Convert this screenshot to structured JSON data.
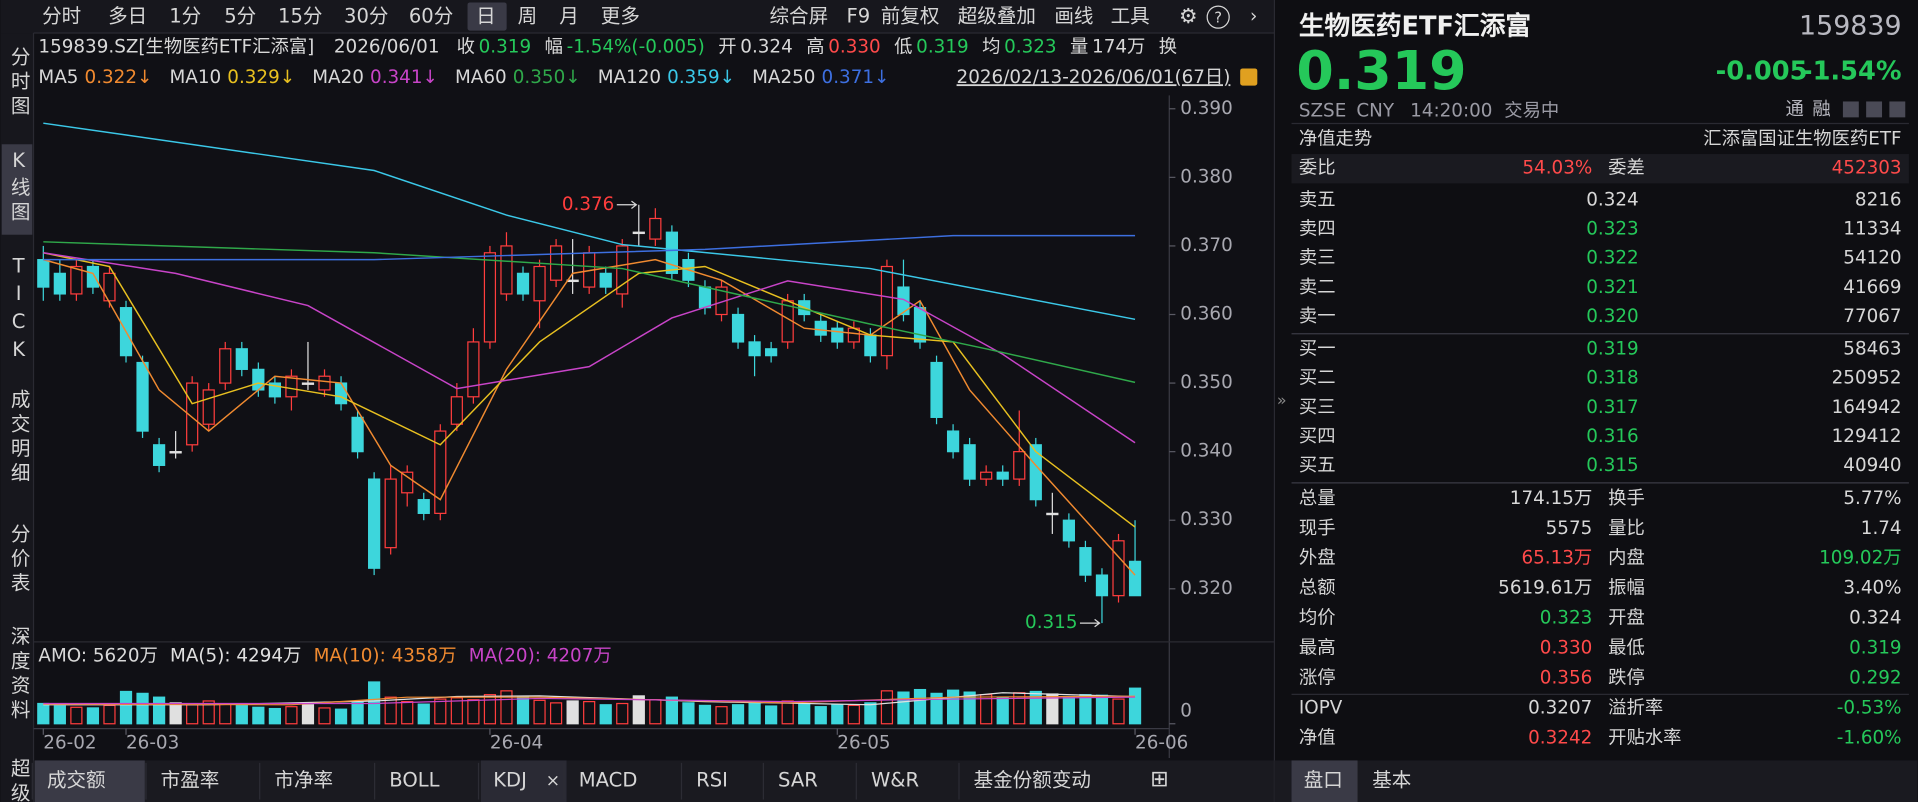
{
  "toolbar": {
    "periods": [
      "分时",
      "多日",
      "1分",
      "5分",
      "15分",
      "30分",
      "60分",
      "日",
      "周",
      "月",
      "更多"
    ],
    "active": 7,
    "tools": [
      "综合屏",
      "F9",
      "前复权",
      "超级叠加",
      "画线",
      "工具"
    ]
  },
  "sidebar": {
    "tabs": [
      "分时图",
      "K线图",
      "TICK",
      "成交明细",
      "分价表",
      "深度资料",
      "超级"
    ],
    "active": 1
  },
  "info": {
    "code": "159839.SZ[生物医药ETF汇添富]",
    "date": "2026/06/01",
    "fields": [
      {
        "label": "收",
        "value": "0.319",
        "tone": "down"
      },
      {
        "label": "幅",
        "value": "-1.54%(-0.005)",
        "tone": "down"
      },
      {
        "label": "开",
        "value": "0.324",
        "tone": "flat"
      },
      {
        "label": "高",
        "value": "0.330",
        "tone": "up"
      },
      {
        "label": "低",
        "value": "0.319",
        "tone": "down"
      },
      {
        "label": "均",
        "value": "0.323",
        "tone": "down"
      },
      {
        "label": "量",
        "value": "174万",
        "tone": "flat"
      }
    ],
    "trailing": "换"
  },
  "chart_data": {
    "type": "candlestick",
    "range_label": "2026/02/13-2026/06/01(67日)",
    "up_color": "#ff3d3d",
    "down_color": "#3dd6dc",
    "flat_color": "#e0e0e0",
    "grid": false,
    "xlim": [
      0,
      66
    ],
    "xticks": [
      {
        "value": 0,
        "label": "26-02"
      },
      {
        "value": 5,
        "label": "26-03"
      },
      {
        "value": 27,
        "label": "26-04"
      },
      {
        "value": 48,
        "label": "26-05"
      },
      {
        "value": 66,
        "label": "26-06"
      }
    ],
    "ylim": [
      0.3128,
      0.3916
    ],
    "yticks": [
      {
        "value": 0.32,
        "label": "0.320"
      },
      {
        "value": 0.33,
        "label": "0.330"
      },
      {
        "value": 0.34,
        "label": "0.340"
      },
      {
        "value": 0.35,
        "label": "0.350"
      },
      {
        "value": 0.36,
        "label": "0.360"
      },
      {
        "value": 0.37,
        "label": "0.370"
      },
      {
        "value": 0.38,
        "label": "0.380"
      },
      {
        "value": 0.39,
        "label": "0.390"
      }
    ],
    "candles": {
      "open": [
        0.368,
        0.366,
        0.363,
        0.367,
        0.362,
        0.361,
        0.353,
        0.341,
        0.34,
        0.341,
        0.344,
        0.35,
        0.355,
        0.352,
        0.35,
        0.348,
        0.35,
        0.349,
        0.35,
        0.345,
        0.336,
        0.326,
        0.334,
        0.333,
        0.331,
        0.344,
        0.348,
        0.356,
        0.363,
        0.366,
        0.362,
        0.365,
        0.365,
        0.364,
        0.366,
        0.363,
        0.372,
        0.371,
        0.372,
        0.368,
        0.364,
        0.36,
        0.36,
        0.356,
        0.355,
        0.356,
        0.362,
        0.359,
        0.358,
        0.356,
        0.357,
        0.354,
        0.364,
        0.361,
        0.353,
        0.343,
        0.341,
        0.336,
        0.337,
        0.336,
        0.341,
        0.331,
        0.33,
        0.326,
        0.322,
        0.319,
        0.324
      ],
      "close": [
        0.364,
        0.363,
        0.367,
        0.364,
        0.366,
        0.354,
        0.343,
        0.338,
        0.34,
        0.35,
        0.349,
        0.355,
        0.352,
        0.349,
        0.348,
        0.351,
        0.35,
        0.351,
        0.347,
        0.34,
        0.323,
        0.336,
        0.337,
        0.331,
        0.343,
        0.348,
        0.356,
        0.369,
        0.37,
        0.363,
        0.367,
        0.37,
        0.365,
        0.369,
        0.364,
        0.37,
        0.372,
        0.374,
        0.366,
        0.365,
        0.361,
        0.364,
        0.356,
        0.354,
        0.354,
        0.362,
        0.36,
        0.357,
        0.356,
        0.358,
        0.354,
        0.367,
        0.36,
        0.356,
        0.345,
        0.34,
        0.336,
        0.337,
        0.336,
        0.34,
        0.333,
        0.331,
        0.327,
        0.322,
        0.319,
        0.327,
        0.319
      ],
      "high": [
        0.37,
        0.368,
        0.368,
        0.368,
        0.367,
        0.362,
        0.354,
        0.342,
        0.343,
        0.351,
        0.35,
        0.356,
        0.356,
        0.353,
        0.351,
        0.352,
        0.356,
        0.352,
        0.351,
        0.346,
        0.337,
        0.338,
        0.338,
        0.334,
        0.344,
        0.35,
        0.358,
        0.37,
        0.372,
        0.367,
        0.368,
        0.371,
        0.371,
        0.37,
        0.367,
        0.371,
        0.376,
        0.3755,
        0.373,
        0.369,
        0.365,
        0.365,
        0.361,
        0.357,
        0.356,
        0.363,
        0.363,
        0.36,
        0.359,
        0.359,
        0.358,
        0.368,
        0.368,
        0.362,
        0.354,
        0.344,
        0.342,
        0.338,
        0.338,
        0.346,
        0.342,
        0.334,
        0.331,
        0.327,
        0.323,
        0.328,
        0.33
      ],
      "low": [
        0.362,
        0.362,
        0.362,
        0.363,
        0.361,
        0.353,
        0.342,
        0.337,
        0.339,
        0.34,
        0.343,
        0.349,
        0.351,
        0.348,
        0.347,
        0.346,
        0.349,
        0.348,
        0.346,
        0.339,
        0.322,
        0.325,
        0.332,
        0.33,
        0.33,
        0.343,
        0.347,
        0.355,
        0.362,
        0.362,
        0.358,
        0.364,
        0.363,
        0.363,
        0.363,
        0.361,
        0.37,
        0.37,
        0.365,
        0.364,
        0.36,
        0.359,
        0.355,
        0.351,
        0.353,
        0.355,
        0.359,
        0.356,
        0.355,
        0.355,
        0.353,
        0.352,
        0.359,
        0.355,
        0.344,
        0.339,
        0.335,
        0.335,
        0.335,
        0.335,
        0.332,
        0.328,
        0.326,
        0.321,
        0.315,
        0.318,
        0.319
      ]
    },
    "series": [
      {
        "name": "MA5",
        "legend_label": "0.322↓",
        "color": "#f08a30",
        "x": [
          0,
          3,
          7,
          10,
          14,
          18,
          21,
          24,
          28,
          32,
          37,
          41,
          46,
          50,
          53,
          56,
          60,
          63,
          66
        ],
        "values": [
          0.368,
          0.366,
          0.349,
          0.343,
          0.351,
          0.35,
          0.338,
          0.333,
          0.352,
          0.366,
          0.368,
          0.365,
          0.358,
          0.357,
          0.362,
          0.349,
          0.338,
          0.33,
          0.322
        ]
      },
      {
        "name": "MA10",
        "legend_label": "0.329↓",
        "color": "#e8c020",
        "x": [
          0,
          4,
          9,
          13,
          18,
          24,
          30,
          36,
          40,
          46,
          50,
          55,
          60,
          66
        ],
        "values": [
          0.369,
          0.367,
          0.347,
          0.35,
          0.348,
          0.341,
          0.356,
          0.366,
          0.367,
          0.361,
          0.357,
          0.356,
          0.34,
          0.329
        ]
      },
      {
        "name": "MA20",
        "legend_label": "0.341↓",
        "color": "#c844c8",
        "x": [
          0,
          8,
          16,
          25,
          33,
          38,
          45,
          52,
          58,
          66
        ],
        "values": [
          0.369,
          0.366,
          0.3613,
          0.3492,
          0.3524,
          0.3595,
          0.3649,
          0.3622,
          0.3542,
          0.3413
        ]
      },
      {
        "name": "MA60",
        "legend_label": "0.350↓",
        "color": "#2fa84a",
        "x": [
          0,
          20,
          35,
          50,
          57,
          66
        ],
        "values": [
          0.3706,
          0.369,
          0.3667,
          0.3586,
          0.355,
          0.3501
        ]
      },
      {
        "name": "MA120",
        "legend_label": "0.359↓",
        "color": "#3bc8e8",
        "x": [
          0,
          20,
          28,
          35,
          50,
          66
        ],
        "values": [
          0.3879,
          0.381,
          0.3745,
          0.3702,
          0.3667,
          0.3593
        ]
      },
      {
        "name": "MA250",
        "legend_label": "0.371↓",
        "color": "#3d6fe0",
        "x": [
          0,
          20,
          40,
          55,
          66
        ],
        "values": [
          0.368,
          0.368,
          0.3695,
          0.3715,
          0.3715
        ]
      }
    ],
    "annotations": [
      {
        "index": 36,
        "value": 0.376,
        "side": "left",
        "color": "#ff3d3d"
      },
      {
        "index": 64,
        "value": 0.315,
        "side": "left",
        "color": "#25c85a"
      }
    ],
    "volume": {
      "amo_label": "AMO: 5620万",
      "ma_labels": [
        {
          "text": "MA(5): 4294万",
          "color": "#e0e0e0"
        },
        {
          "text": "MA(10): 4358万",
          "color": "#f08a30"
        },
        {
          "text": "MA(20): 4207万",
          "color": "#c844c8"
        }
      ],
      "ylim": [
        0,
        8500
      ],
      "yticks": [
        0
      ],
      "values": [
        3200,
        2800,
        2600,
        2500,
        2900,
        5100,
        4800,
        4200,
        3300,
        3000,
        3600,
        3100,
        2900,
        2600,
        2400,
        2700,
        3000,
        2500,
        2300,
        3400,
        6600,
        4200,
        3500,
        3100,
        3900,
        4100,
        3800,
        4600,
        5200,
        4300,
        3700,
        3300,
        3600,
        3500,
        3000,
        3200,
        4400,
        3800,
        4200,
        3300,
        2900,
        2700,
        3000,
        3400,
        2800,
        3600,
        3100,
        2700,
        3000,
        2900,
        3300,
        5200,
        5000,
        5400,
        4800,
        5300,
        5000,
        4600,
        4200,
        4900,
        5100,
        4700,
        4300,
        4600,
        4500,
        3900,
        5620
      ],
      "series": [
        {
          "color": "#e0e0e0",
          "x": [
            0,
            10,
            20,
            25,
            30,
            40,
            50,
            58,
            66
          ],
          "values": [
            3000,
            3000,
            3600,
            4300,
            4400,
            3500,
            3000,
            4900,
            4294
          ]
        },
        {
          "color": "#f08a30",
          "x": [
            0,
            15,
            22,
            30,
            45,
            55,
            66
          ],
          "values": [
            3100,
            3000,
            4200,
            4200,
            3300,
            4200,
            4358
          ]
        },
        {
          "color": "#c844c8",
          "x": [
            0,
            20,
            30,
            45,
            55,
            66
          ],
          "values": [
            3200,
            3200,
            4000,
            3500,
            3900,
            4207
          ]
        }
      ]
    }
  },
  "bottom_tabs": {
    "items": [
      "成交额",
      "市盈率",
      "市净率",
      "BOLL",
      "KDJ",
      "MACD",
      "RSI",
      "SAR",
      "W&R",
      "基金份额变动"
    ],
    "active": 0
  },
  "quote": {
    "title": "生物医药ETF汇添富",
    "code": "159839",
    "price": "0.319",
    "change": "-0.005",
    "pct": "-1.54%",
    "meta": [
      "SZSE",
      "CNY",
      "14:20:00",
      "交易中"
    ],
    "badges": [
      "通",
      "融"
    ],
    "nav_title": "净值走势",
    "fund_name": "汇添富国证生物医药ETF",
    "ratio": [
      {
        "label": "委比",
        "value": "54.03%",
        "tone": "up"
      },
      {
        "label": "委差",
        "value": "452303",
        "tone": "up"
      }
    ],
    "asks": [
      {
        "label": "卖五",
        "price": "0.324",
        "vol": "8216",
        "tone": "flat"
      },
      {
        "label": "卖四",
        "price": "0.323",
        "vol": "11334",
        "tone": "down"
      },
      {
        "label": "卖三",
        "price": "0.322",
        "vol": "54120",
        "tone": "down"
      },
      {
        "label": "卖二",
        "price": "0.321",
        "vol": "41669",
        "tone": "down"
      },
      {
        "label": "卖一",
        "price": "0.320",
        "vol": "77067",
        "tone": "down"
      }
    ],
    "bids": [
      {
        "label": "买一",
        "price": "0.319",
        "vol": "58463",
        "tone": "down"
      },
      {
        "label": "买二",
        "price": "0.318",
        "vol": "250952",
        "tone": "down"
      },
      {
        "label": "买三",
        "price": "0.317",
        "vol": "164942",
        "tone": "down"
      },
      {
        "label": "买四",
        "price": "0.316",
        "vol": "129412",
        "tone": "down"
      },
      {
        "label": "买五",
        "price": "0.315",
        "vol": "40940",
        "tone": "down"
      }
    ],
    "stats": [
      [
        {
          "label": "总量",
          "value": "174.15万",
          "tone": "flat"
        },
        {
          "label": "换手",
          "value": "5.77%",
          "tone": "flat"
        }
      ],
      [
        {
          "label": "现手",
          "value": "5575",
          "tone": "flat"
        },
        {
          "label": "量比",
          "value": "1.74",
          "tone": "flat"
        }
      ],
      [
        {
          "label": "外盘",
          "value": "65.13万",
          "tone": "up"
        },
        {
          "label": "内盘",
          "value": "109.02万",
          "tone": "down"
        }
      ],
      [
        {
          "label": "总额",
          "value": "5619.61万",
          "tone": "flat"
        },
        {
          "label": "振幅",
          "value": "3.40%",
          "tone": "flat"
        }
      ],
      [
        {
          "label": "均价",
          "value": "0.323",
          "tone": "down"
        },
        {
          "label": "开盘",
          "value": "0.324",
          "tone": "flat"
        }
      ],
      [
        {
          "label": "最高",
          "value": "0.330",
          "tone": "up"
        },
        {
          "label": "最低",
          "value": "0.319",
          "tone": "down"
        }
      ],
      [
        {
          "label": "涨停",
          "value": "0.356",
          "tone": "up"
        },
        {
          "label": "跌停",
          "value": "0.292",
          "tone": "down"
        }
      ],
      [
        {
          "label": "IOPV",
          "value": "0.3207",
          "tone": "flat"
        },
        {
          "label": "溢折率",
          "value": "-0.53%",
          "tone": "down"
        }
      ],
      [
        {
          "label": "净值",
          "value": "0.3242",
          "tone": "up"
        },
        {
          "label": "开贴水率",
          "value": "-1.60%",
          "tone": "down"
        }
      ]
    ],
    "tabs": [
      "盘口",
      "基本"
    ],
    "active_tab": 0
  }
}
